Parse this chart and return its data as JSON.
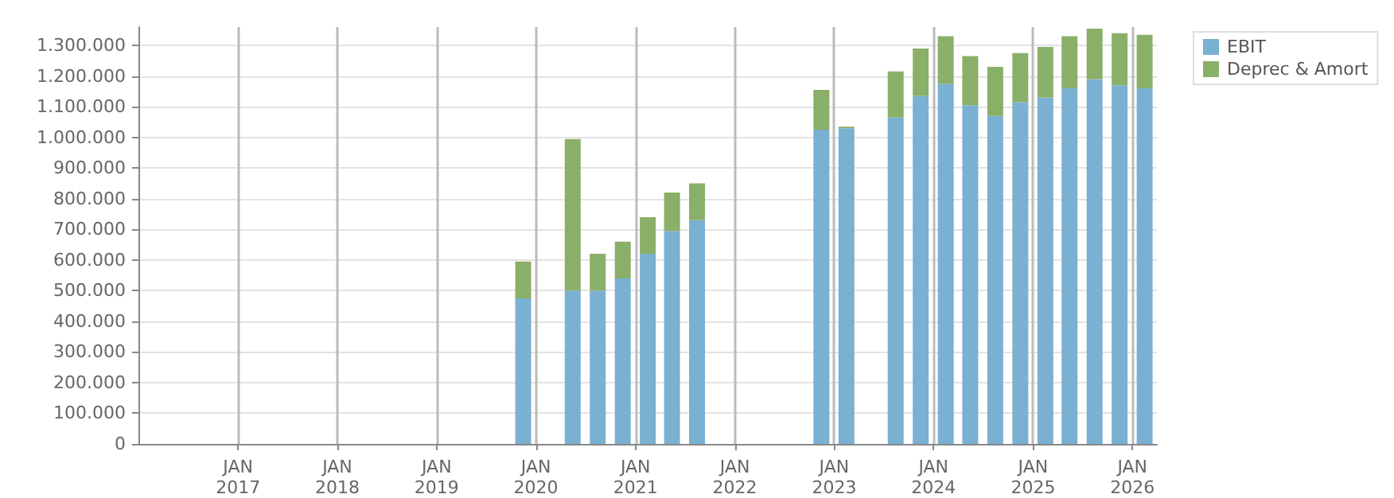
{
  "chart_data": {
    "type": "bar",
    "stacked": true,
    "x": [
      "2019-11-15",
      "2020-05-15",
      "2020-08-15",
      "2020-11-15",
      "2021-02-15",
      "2021-05-15",
      "2021-08-15",
      "2022-11-15",
      "2023-02-15",
      "2023-08-15",
      "2023-11-15",
      "2024-02-15",
      "2024-05-15",
      "2024-08-15",
      "2024-11-15",
      "2025-02-15",
      "2025-05-15",
      "2025-08-15",
      "2025-11-15",
      "2026-02-15"
    ],
    "series": [
      {
        "name": "EBIT",
        "color": "#7ab0d2",
        "values": [
          475000,
          500000,
          500000,
          540000,
          620000,
          695000,
          730000,
          1025000,
          1030000,
          1065000,
          1135000,
          1175000,
          1105000,
          1070000,
          1115000,
          1130000,
          1160000,
          1190000,
          1170000,
          1160000
        ]
      },
      {
        "name": "Deprec & Amort",
        "color": "#8aaf68",
        "values": [
          120000,
          495000,
          120000,
          120000,
          120000,
          125000,
          120000,
          130000,
          5000,
          150000,
          155000,
          155000,
          160000,
          160000,
          160000,
          165000,
          170000,
          165000,
          170000,
          175000
        ]
      }
    ],
    "xlim": [
      "2016-01-01",
      "2026-04-01"
    ],
    "xticks": [
      {
        "value": "2017-01-01",
        "label": "JAN\n2017"
      },
      {
        "value": "2018-01-01",
        "label": "JAN\n2018"
      },
      {
        "value": "2019-01-01",
        "label": "JAN\n2019"
      },
      {
        "value": "2020-01-01",
        "label": "JAN\n2020"
      },
      {
        "value": "2021-01-01",
        "label": "JAN\n2021"
      },
      {
        "value": "2022-01-01",
        "label": "JAN\n2022"
      },
      {
        "value": "2023-01-01",
        "label": "JAN\n2023"
      },
      {
        "value": "2024-01-01",
        "label": "JAN\n2024"
      },
      {
        "value": "2025-01-01",
        "label": "JAN\n2025"
      },
      {
        "value": "2026-01-01",
        "label": "JAN\n2026"
      }
    ],
    "ylim": [
      0,
      1360000
    ],
    "yticks": [
      {
        "value": 0,
        "label": "0"
      },
      {
        "value": 100000,
        "label": "100.000"
      },
      {
        "value": 200000,
        "label": "200.000"
      },
      {
        "value": 300000,
        "label": "300.000"
      },
      {
        "value": 400000,
        "label": "400.000"
      },
      {
        "value": 500000,
        "label": "500.000"
      },
      {
        "value": 600000,
        "label": "600.000"
      },
      {
        "value": 700000,
        "label": "700.000"
      },
      {
        "value": 800000,
        "label": "800.000"
      },
      {
        "value": 900000,
        "label": "900.000"
      },
      {
        "value": 1000000,
        "label": "1.000.000"
      },
      {
        "value": 1100000,
        "label": "1.100.000"
      },
      {
        "value": 1200000,
        "label": "1.200.000"
      },
      {
        "value": 1300000,
        "label": "1.300.000"
      }
    ],
    "grid": true,
    "legend": "top right"
  }
}
